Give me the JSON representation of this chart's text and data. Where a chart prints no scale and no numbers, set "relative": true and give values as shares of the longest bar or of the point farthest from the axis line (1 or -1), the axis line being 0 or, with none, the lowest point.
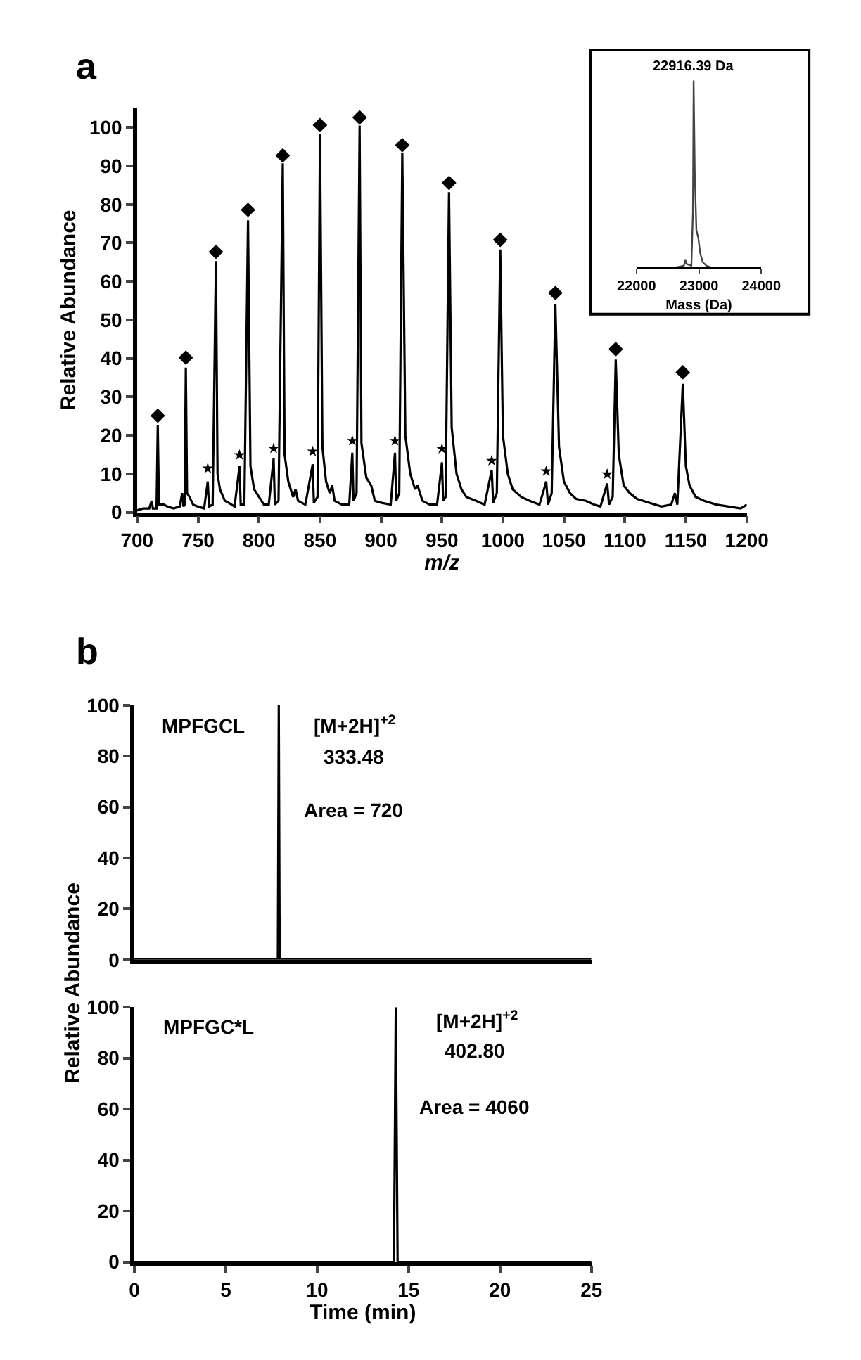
{
  "chart_data": [
    {
      "type": "line",
      "xlabel": "m/z",
      "ylabel": "Relative Abundance",
      "xlim": [
        700,
        1200
      ],
      "xticks": [
        700,
        750,
        800,
        850,
        900,
        950,
        1000,
        1050,
        1100,
        1150,
        1200
      ],
      "ylim": [
        0,
        105
      ],
      "yticks": [
        0,
        10,
        20,
        30,
        40,
        50,
        60,
        70,
        80,
        90,
        100
      ],
      "annotations": [
        "a"
      ],
      "series": [
        {
          "color": "#000000",
          "x": [
            700,
            705,
            710,
            712,
            713,
            716,
            717,
            718,
            722,
            725,
            730,
            735,
            737,
            738,
            739,
            740,
            741,
            743,
            746,
            750,
            755,
            758,
            759,
            762,
            764.7,
            766,
            768,
            772,
            775,
            780,
            784,
            785,
            788,
            791,
            793,
            796,
            800,
            804,
            808,
            812,
            813,
            816,
            819.5,
            821,
            824,
            828,
            830,
            832,
            838,
            844,
            845,
            848,
            850,
            852,
            855,
            858,
            860,
            862,
            868,
            874,
            876.5,
            877.5,
            880,
            882.5,
            884,
            888,
            892,
            895,
            900,
            908,
            911.5,
            912.5,
            915,
            917.5,
            920,
            924,
            928,
            930,
            934,
            940,
            946,
            950,
            951,
            953,
            955.8,
            958,
            962,
            966,
            970,
            978,
            985,
            990.8,
            992,
            995,
            997.8,
            1000,
            1004,
            1008,
            1015,
            1022,
            1030,
            1035.5,
            1037,
            1040,
            1043,
            1046,
            1050,
            1055,
            1060,
            1068,
            1075,
            1080,
            1085.5,
            1087,
            1090,
            1092.5,
            1095,
            1099,
            1104,
            1110,
            1120,
            1130,
            1138,
            1141,
            1143,
            1147.5,
            1150,
            1153,
            1158,
            1165,
            1175,
            1185,
            1195,
            1200
          ],
          "values": [
            0.5,
            1,
            1,
            3,
            1,
            1,
            22.6,
            2,
            2,
            1.5,
            1,
            1.5,
            5,
            1.5,
            2,
            37.6,
            5,
            4,
            2,
            1.5,
            1,
            8,
            1.5,
            2,
            65.3,
            10,
            6,
            3,
            2.5,
            1.5,
            12,
            2,
            2,
            75.9,
            12,
            6,
            4,
            2,
            2,
            14,
            2,
            3,
            90.7,
            15,
            8,
            4,
            6,
            3,
            2,
            12.5,
            2.5,
            4,
            98.4,
            17,
            8,
            5,
            7,
            3,
            2,
            2,
            15.5,
            3,
            5,
            100.5,
            18,
            9,
            7,
            3,
            2.5,
            2,
            15.5,
            3,
            5,
            93.3,
            20,
            10,
            6,
            7,
            3,
            2,
            2,
            13,
            3,
            4,
            83.2,
            22,
            10,
            6,
            4,
            3,
            2,
            11,
            2.5,
            5,
            68.3,
            20,
            10,
            6,
            4,
            3,
            2,
            8,
            2,
            5,
            54.1,
            17,
            8,
            5,
            3.5,
            3,
            2,
            1.5,
            7.5,
            2,
            4,
            39.7,
            15,
            7,
            5,
            3.5,
            2.5,
            1.5,
            2,
            5,
            2,
            33.4,
            12,
            7,
            4,
            3,
            2,
            1.5,
            1,
            2
          ]
        },
        {
          "type": "scatter",
          "marker": "diamond",
          "color": "#000000",
          "x": [
            717,
            740,
            764.7,
            791,
            819.5,
            850,
            882.5,
            917.5,
            955.8,
            997.8,
            1043,
            1092.5,
            1147.5
          ],
          "values": [
            25.1,
            40.2,
            67.7,
            78.6,
            92.7,
            100.6,
            102.6,
            95.4,
            85.6,
            70.8,
            57,
            42.4,
            36.4
          ]
        },
        {
          "type": "scatter",
          "marker": "star",
          "color": "#000000",
          "x": [
            758,
            784,
            812,
            844,
            876.5,
            911.5,
            950,
            990.8,
            1035.5,
            1085.5
          ],
          "values": [
            11.4,
            14.9,
            16.6,
            15.8,
            18.6,
            18.6,
            16.5,
            13.4,
            10.7,
            9.9
          ]
        }
      ]
    },
    {
      "type": "line",
      "relative": true,
      "xlabel": "Mass (Da)",
      "xlim": [
        22000,
        24000
      ],
      "xticks": [
        22000,
        23000,
        24000
      ],
      "annotations": [
        {
          "text": "22916.39 Da",
          "x": 22916,
          "y": 1
        }
      ],
      "series": [
        {
          "color": "#444444",
          "x": [
            22620,
            22760,
            22783,
            22800,
            22880,
            22905,
            22916,
            22935,
            22960,
            22990,
            23020,
            23060,
            23120,
            23200
          ],
          "values": [
            0,
            0.01,
            0.04,
            0.02,
            0.01,
            0.3,
            1,
            0.5,
            0.2,
            0.16,
            0.08,
            0.03,
            0.01,
            0
          ]
        }
      ]
    },
    {
      "type": "line",
      "xlim": [
        0,
        25
      ],
      "ylim": [
        0,
        100
      ],
      "yticks": [
        0,
        20,
        40,
        60,
        80,
        100
      ],
      "tick_labels": "y",
      "annotations": [
        "b",
        "MPFGCL",
        "[M+2H]$^{+2}$",
        "333.48",
        "Area = 720"
      ],
      "series": [
        {
          "color": "#000000",
          "x": [
            0,
            7.85,
            7.9,
            7.95,
            25
          ],
          "values": [
            0,
            0,
            100,
            0,
            0
          ]
        }
      ]
    },
    {
      "type": "line",
      "xlabel": "Time (min)",
      "ylabel": "Relative Abundance",
      "xlim": [
        0,
        25
      ],
      "xticks": [
        0,
        5,
        10,
        15,
        20,
        25
      ],
      "ylim": [
        0,
        100
      ],
      "yticks": [
        0,
        20,
        40,
        60,
        80,
        100
      ],
      "annotations": [
        "MPFGC*L",
        "[M+2H]$^{+2}$",
        "402.80",
        "Area = 4060"
      ],
      "series": [
        {
          "color": "#000000",
          "x": [
            0,
            14.2,
            14.3,
            14.4,
            25
          ],
          "values": [
            0,
            0,
            100,
            0,
            0
          ]
        }
      ]
    }
  ]
}
